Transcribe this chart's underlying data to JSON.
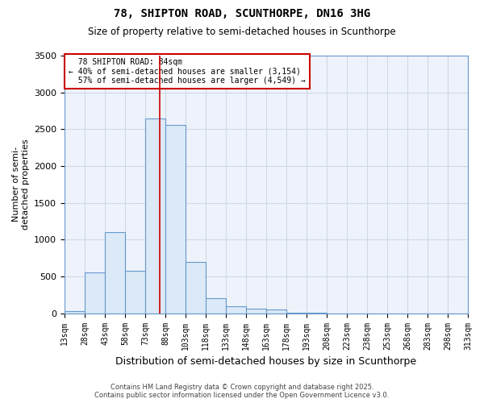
{
  "title1": "78, SHIPTON ROAD, SCUNTHORPE, DN16 3HG",
  "title2": "Size of property relative to semi-detached houses in Scunthorpe",
  "xlabel": "Distribution of semi-detached houses by size in Scunthorpe",
  "ylabel": "Number of semi-\ndetached properties",
  "footer1": "Contains HM Land Registry data © Crown copyright and database right 2025.",
  "footer2": "Contains public sector information licensed under the Open Government Licence v3.0.",
  "property_size": 84,
  "property_label": "78 SHIPTON ROAD: 84sqm",
  "smaller_pct": 40,
  "smaller_count": 3154,
  "larger_pct": 57,
  "larger_count": 4549,
  "bin_edges": [
    13,
    28,
    43,
    58,
    73,
    88,
    103,
    118,
    133,
    148,
    163,
    178,
    193,
    208,
    223,
    238,
    253,
    268,
    283,
    298,
    313
  ],
  "bar_heights": [
    30,
    550,
    1100,
    580,
    2650,
    2560,
    700,
    200,
    100,
    60,
    50,
    10,
    5,
    0,
    0,
    0,
    0,
    0,
    0,
    0
  ],
  "bar_color": "#dce9f7",
  "bar_edge_color": "#6699cc",
  "grid_color": "#d0d8e8",
  "annotation_box_color": "#cc0000",
  "vline_color": "#cc0000",
  "bg_color": "#ffffff",
  "plot_bg_color": "#eef3fb",
  "ylim": [
    0,
    3500
  ],
  "yticks": [
    0,
    500,
    1000,
    1500,
    2000,
    2500,
    3000,
    3500
  ]
}
